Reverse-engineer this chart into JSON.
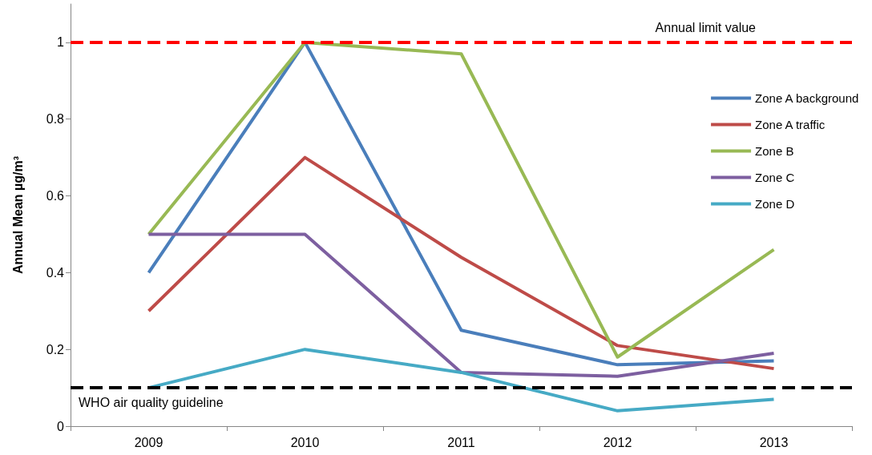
{
  "chart_data": {
    "type": "line",
    "ylabel": "Annual Mean µg/m³",
    "categories": [
      "2009",
      "2010",
      "2011",
      "2012",
      "2013"
    ],
    "series": [
      {
        "name": "Zone A background",
        "color": "#4a7ebb",
        "values": [
          0.4,
          1.0,
          0.25,
          0.16,
          0.17
        ]
      },
      {
        "name": "Zone A traffic",
        "color": "#be4b48",
        "values": [
          0.3,
          0.7,
          0.44,
          0.21,
          0.15
        ]
      },
      {
        "name": "Zone B",
        "color": "#98b954",
        "values": [
          0.5,
          1.0,
          0.97,
          0.18,
          0.46
        ]
      },
      {
        "name": "Zone C",
        "color": "#7d5fa0",
        "values": [
          0.5,
          0.5,
          0.14,
          0.13,
          0.19
        ]
      },
      {
        "name": "Zone D",
        "color": "#46aac5",
        "values": [
          0.1,
          0.2,
          0.14,
          0.04,
          0.07
        ]
      }
    ],
    "ylim": [
      0,
      1.1
    ],
    "yticks": [
      0,
      0.2,
      0.4,
      0.6,
      0.8,
      1
    ],
    "ref_lines": [
      {
        "axis": "y",
        "value": 1,
        "label": "Annual limit value",
        "color": "#ff0000",
        "line_style": "dashed"
      },
      {
        "axis": "y",
        "value": 0.1,
        "label": "WHO air quality guideline",
        "color": "#000000",
        "line_style": "dashed"
      }
    ],
    "grid": false,
    "legend": "right",
    "marker": "none",
    "line_style": "solid"
  }
}
